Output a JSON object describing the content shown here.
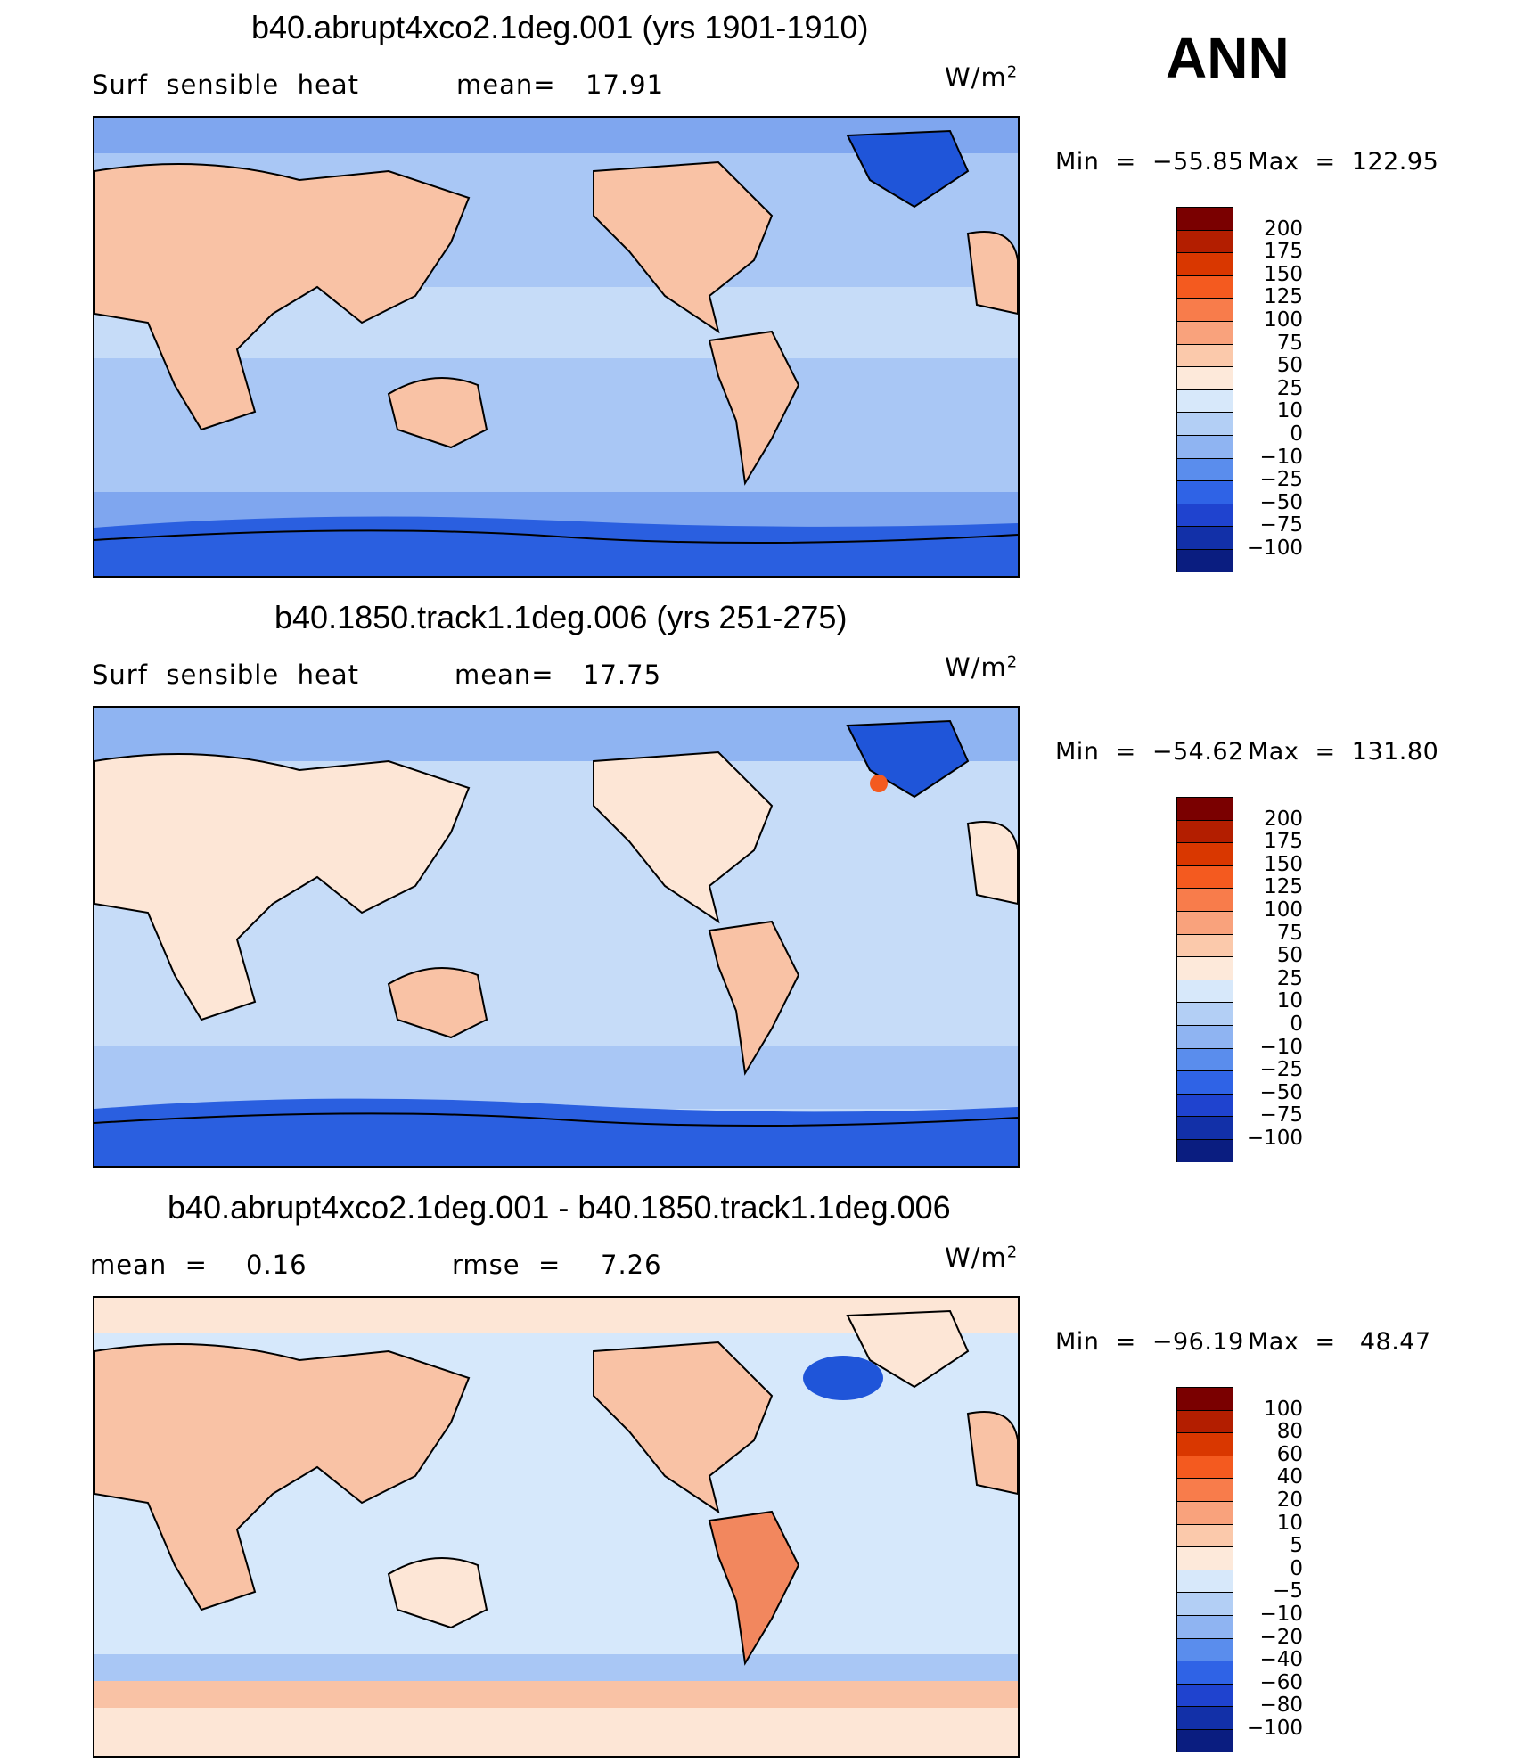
{
  "season_label": "ANN",
  "colors": {
    "land_warm": "#f9c2a5",
    "land_light": "#fde6d6",
    "ocean_light": "#d6e8fb",
    "ocean_mid": "#a9c7f5",
    "ocean_deep": "#3a6fe3",
    "ice_cold": "#1f55d9",
    "diff_warm": "#f2875e",
    "coastline": "#000000"
  },
  "panels": [
    {
      "title": "b40.abrupt4xco2.1deg.001 (yrs 1901-1910)",
      "left_label": "Surf  sensible  heat",
      "stat_label": "mean=",
      "stat_value": "17.91",
      "units": "W/m",
      "units_exp": "2",
      "min_label": "Min  =  −55.85",
      "max_label": "Max  =  122.95",
      "colorbar": {
        "levels": [
          "200",
          "175",
          "150",
          "125",
          "100",
          "75",
          "50",
          "25",
          "10",
          "0",
          "−10",
          "−25",
          "−50",
          "−75",
          "−100"
        ],
        "colors": [
          "#7a0000",
          "#b31e00",
          "#d93700",
          "#f45a1f",
          "#f87c4b",
          "#f9a27c",
          "#fbc9ab",
          "#fde9da",
          "#d7e8fa",
          "#b3cff5",
          "#8fb4f2",
          "#5a8ded",
          "#2f63e6",
          "#1f43cf",
          "#1230a8",
          "#0a1d80"
        ]
      }
    },
    {
      "title": "b40.1850.track1.1deg.006 (yrs 251-275)",
      "left_label": "Surf  sensible  heat",
      "stat_label": "mean=",
      "stat_value": "17.75",
      "units": "W/m",
      "units_exp": "2",
      "min_label": "Min  =  −54.62",
      "max_label": "Max  =  131.80",
      "colorbar": {
        "levels": [
          "200",
          "175",
          "150",
          "125",
          "100",
          "75",
          "50",
          "25",
          "10",
          "0",
          "−10",
          "−25",
          "−50",
          "−75",
          "−100"
        ],
        "colors": [
          "#7a0000",
          "#b31e00",
          "#d93700",
          "#f45a1f",
          "#f87c4b",
          "#f9a27c",
          "#fbc9ab",
          "#fde9da",
          "#d7e8fa",
          "#b3cff5",
          "#8fb4f2",
          "#5a8ded",
          "#2f63e6",
          "#1f43cf",
          "#1230a8",
          "#0a1d80"
        ]
      }
    },
    {
      "title": "b40.abrupt4xco2.1deg.001 - b40.1850.track1.1deg.006",
      "left_label": "mean  =",
      "left_value": "0.16",
      "stat_label": "rmse  =",
      "stat_value": "7.26",
      "units": "W/m",
      "units_exp": "2",
      "min_label": "Min  =  −96.19",
      "max_label": "Max  =   48.47",
      "colorbar": {
        "levels": [
          "100",
          "80",
          "60",
          "40",
          "20",
          "10",
          "5",
          "0",
          "−5",
          "−10",
          "−20",
          "−40",
          "−60",
          "−80",
          "−100"
        ],
        "colors": [
          "#7a0000",
          "#b31e00",
          "#d93700",
          "#f45a1f",
          "#f87c4b",
          "#f9a27c",
          "#fbc9ab",
          "#fde9da",
          "#d7e8fa",
          "#b3cff5",
          "#8fb4f2",
          "#5a8ded",
          "#2f63e6",
          "#1f43cf",
          "#1230a8",
          "#0a1d80"
        ]
      }
    }
  ]
}
